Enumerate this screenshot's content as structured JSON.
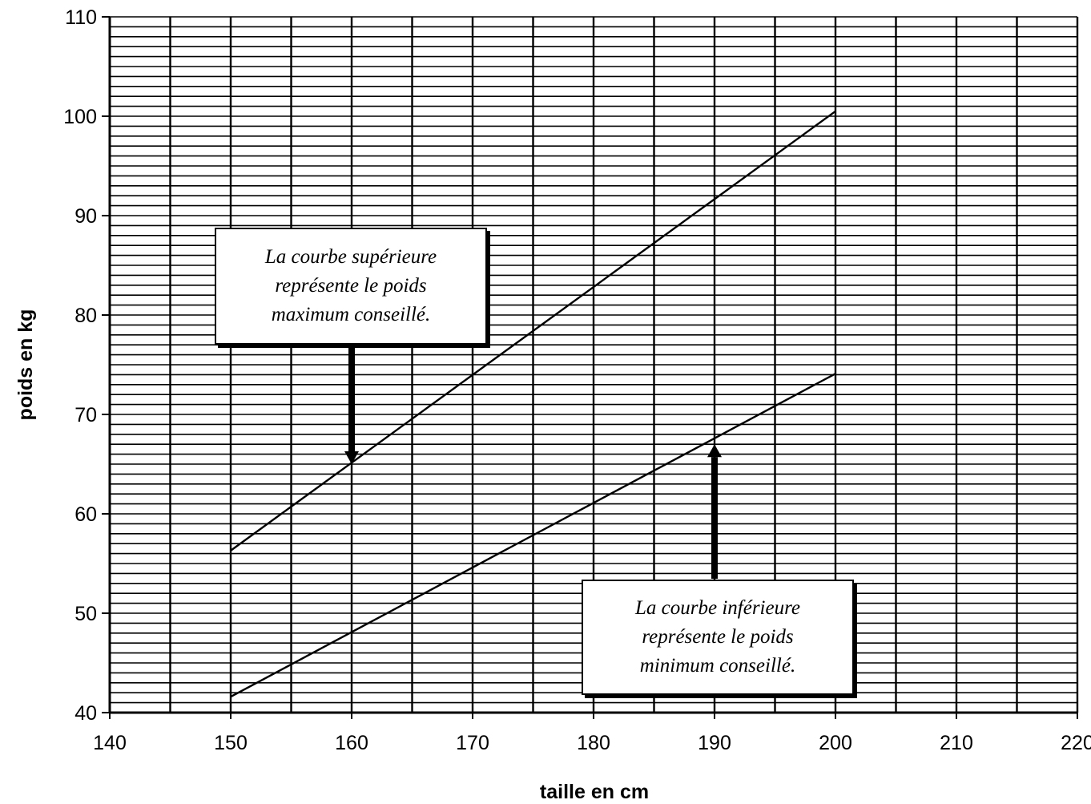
{
  "chart_data": {
    "type": "line",
    "title": "",
    "xlabel": "taille en cm",
    "ylabel": "poids en kg",
    "xlim": [
      140,
      220
    ],
    "ylim": [
      40,
      110
    ],
    "x_ticks": [
      140,
      150,
      160,
      170,
      180,
      190,
      200,
      210,
      220
    ],
    "y_ticks": [
      40,
      50,
      60,
      70,
      80,
      90,
      100,
      110
    ],
    "grid": true,
    "x_grid_step": 5,
    "y_grid_step": 1,
    "series": [
      {
        "x": [
          150,
          200
        ],
        "values": [
          56.3,
          100.5
        ]
      },
      {
        "x": [
          150,
          200
        ],
        "values": [
          41.6,
          74.1
        ]
      }
    ],
    "annotations": [
      {
        "text": "La courbe supérieure\nreprésente le poids\nmaximum conseillé.",
        "arrow_to": [
          160,
          65
        ]
      },
      {
        "text": "La courbe inférieure\nreprésente le poids\nminimum conseillé.",
        "arrow_to": [
          190,
          67
        ]
      }
    ]
  }
}
